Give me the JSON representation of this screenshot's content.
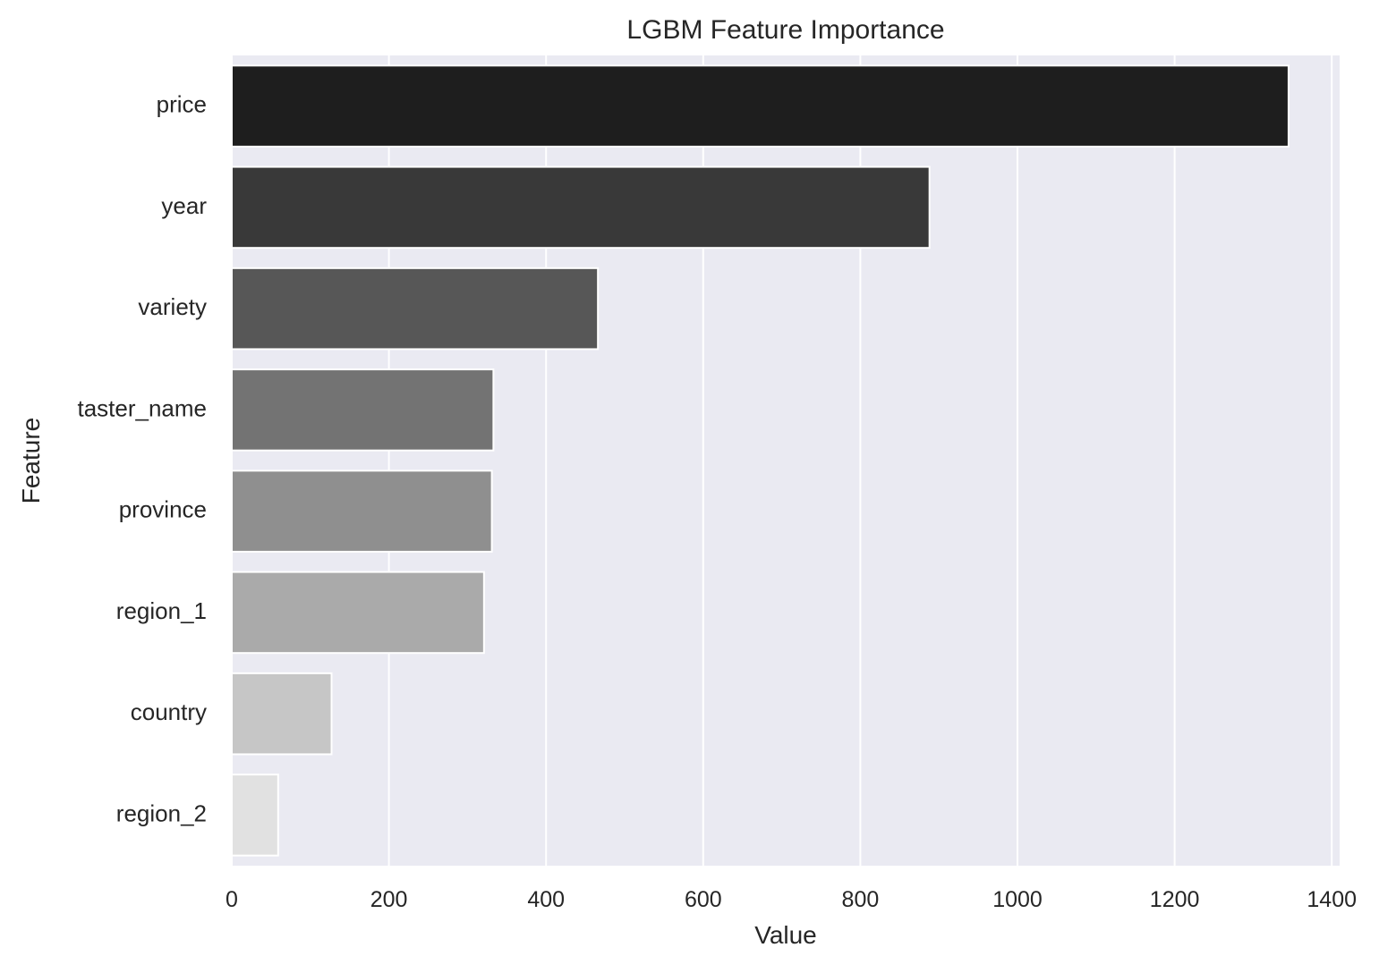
{
  "chart_data": {
    "type": "bar",
    "orientation": "horizontal",
    "title": "LGBM Feature Importance",
    "xlabel": "Value",
    "ylabel": "Feature",
    "categories": [
      "price",
      "year",
      "variety",
      "taster_name",
      "province",
      "region_1",
      "country",
      "region_2"
    ],
    "values": [
      1345,
      888,
      466,
      333,
      331,
      321,
      127,
      59
    ],
    "colors": [
      "#1e1e1e",
      "#393939",
      "#575757",
      "#737373",
      "#8f8f8f",
      "#aaaaaa",
      "#c6c6c6",
      "#e1e1e1"
    ],
    "xlim": [
      0,
      1410
    ],
    "xticks": [
      0,
      200,
      400,
      600,
      800,
      1000,
      1200,
      1400
    ],
    "xtick_labels": [
      "0",
      "200",
      "400",
      "600",
      "800",
      "1000",
      "1200",
      "1400"
    ],
    "grid": true,
    "background_color": "#eaeaf2",
    "grid_color": "#ffffff"
  }
}
